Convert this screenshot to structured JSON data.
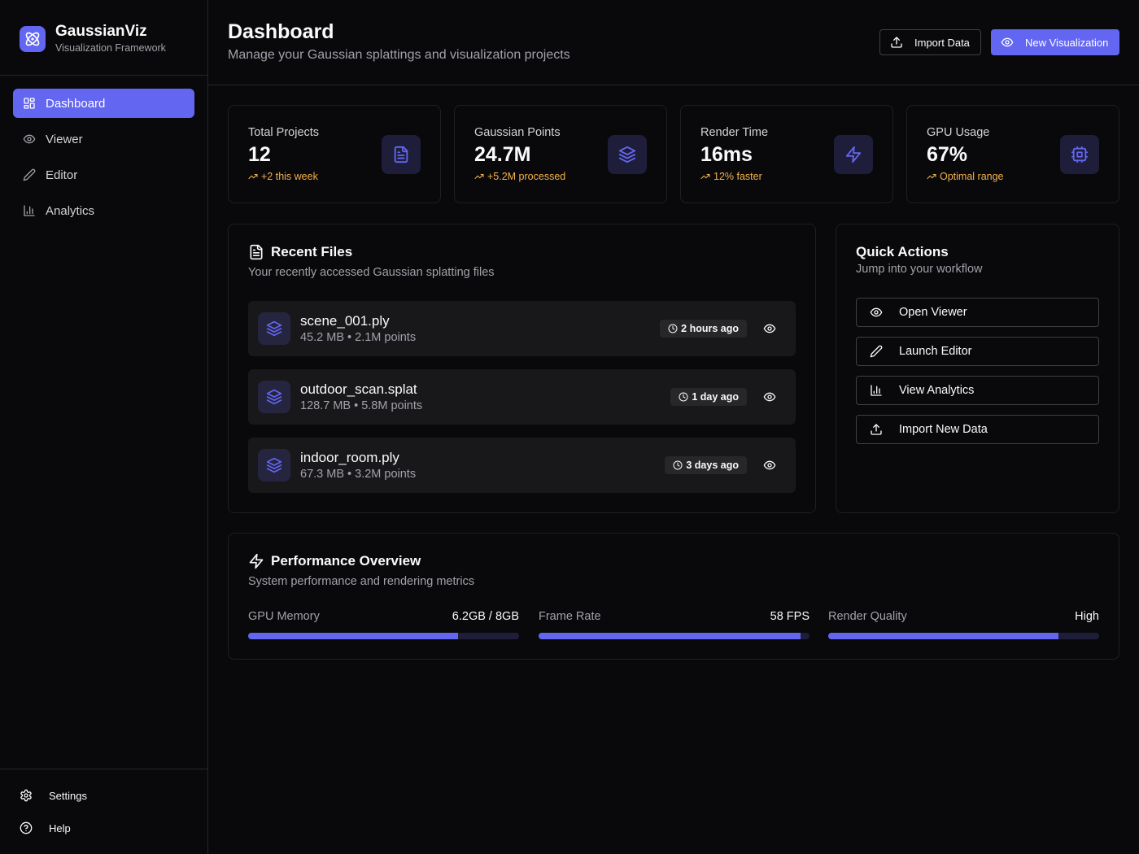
{
  "brand": {
    "name": "GaussianViz",
    "subtitle": "Visualization Framework"
  },
  "nav": [
    {
      "label": "Dashboard",
      "icon": "dashboard-grid-icon",
      "active": true
    },
    {
      "label": "Viewer",
      "icon": "eye-icon"
    },
    {
      "label": "Editor",
      "icon": "pencil-icon"
    },
    {
      "label": "Analytics",
      "icon": "bar-chart-icon"
    }
  ],
  "sidebar_bottom": [
    {
      "label": "Settings",
      "icon": "gear-icon"
    },
    {
      "label": "Help",
      "icon": "help-circle-icon"
    }
  ],
  "header": {
    "title": "Dashboard",
    "subtitle": "Manage your Gaussian splattings and visualization projects",
    "import_label": "Import Data",
    "new_label": "New Visualization"
  },
  "stats": [
    {
      "label": "Total Projects",
      "value": "12",
      "trend": "+2 this week",
      "icon": "file-text-icon"
    },
    {
      "label": "Gaussian Points",
      "value": "24.7M",
      "trend": "+5.2M processed",
      "icon": "layers-icon"
    },
    {
      "label": "Render Time",
      "value": "16ms",
      "trend": "12% faster",
      "icon": "lightning-icon"
    },
    {
      "label": "GPU Usage",
      "value": "67%",
      "trend": "Optimal range",
      "icon": "cpu-icon"
    }
  ],
  "recent_files": {
    "title": "Recent Files",
    "subtitle": "Your recently accessed Gaussian splatting files",
    "files": [
      {
        "name": "scene_001.ply",
        "meta": "45.2 MB • 2.1M points",
        "time": "2 hours ago"
      },
      {
        "name": "outdoor_scan.splat",
        "meta": "128.7 MB • 5.8M points",
        "time": "1 day ago"
      },
      {
        "name": "indoor_room.ply",
        "meta": "67.3 MB • 3.2M points",
        "time": "3 days ago"
      }
    ]
  },
  "quick_actions": {
    "title": "Quick Actions",
    "subtitle": "Jump into your workflow",
    "actions": [
      {
        "label": "Open Viewer",
        "icon": "eye-icon"
      },
      {
        "label": "Launch Editor",
        "icon": "pencil-icon"
      },
      {
        "label": "View Analytics",
        "icon": "bar-chart-icon"
      },
      {
        "label": "Import New Data",
        "icon": "upload-icon"
      }
    ]
  },
  "performance": {
    "title": "Performance Overview",
    "subtitle": "System performance and rendering metrics",
    "metrics": [
      {
        "label": "GPU Memory",
        "value": "6.2GB / 8GB",
        "fill": 0.775
      },
      {
        "label": "Frame Rate",
        "value": "58 FPS",
        "fill": 0.967
      },
      {
        "label": "Render Quality",
        "value": "High",
        "fill": 0.85
      }
    ]
  },
  "colors": {
    "accent": "#6366f1",
    "background": "#09090b",
    "border": "#27272a",
    "trend": "#f5b14b",
    "muted_text": "#a1a1aa"
  }
}
